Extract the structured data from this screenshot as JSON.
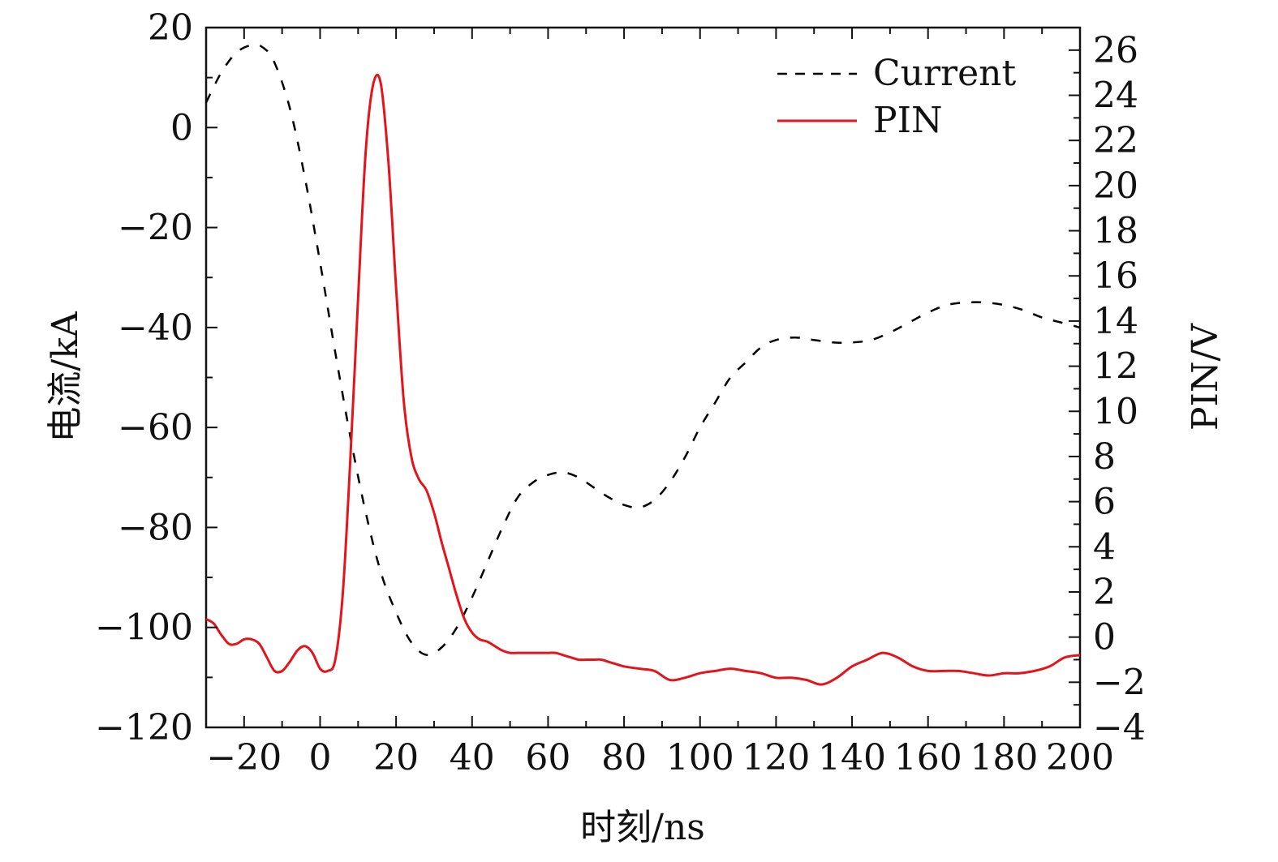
{
  "chart_data": {
    "type": "line",
    "xlabel": "时刻/ns",
    "ylabel_left": "电流/kA",
    "ylabel_right": "PIN/V",
    "xlim": [
      -30,
      200
    ],
    "ylim_left": [
      -120,
      20
    ],
    "ylim_right": [
      -4,
      27
    ],
    "x_ticks": [
      -20,
      0,
      20,
      40,
      60,
      80,
      100,
      120,
      140,
      160,
      180,
      200
    ],
    "x_tick_labels": [
      "−20",
      "0",
      "20",
      "40",
      "60",
      "80",
      "100",
      "120",
      "140",
      "160",
      "180",
      "200"
    ],
    "y_left_ticks": [
      20,
      0,
      -20,
      -40,
      -60,
      -80,
      -100,
      -120
    ],
    "y_left_tick_labels": [
      "20",
      "0",
      "−20",
      "−40",
      "−60",
      "−80",
      "−100",
      "−120"
    ],
    "y_right_ticks": [
      26,
      24,
      22,
      20,
      18,
      16,
      14,
      12,
      10,
      8,
      6,
      4,
      2,
      0,
      -2,
      -4
    ],
    "y_right_tick_labels": [
      "26",
      "24",
      "22",
      "20",
      "18",
      "16",
      "14",
      "12",
      "10",
      "8",
      "6",
      "4",
      "2",
      "0",
      "−2",
      "−4"
    ],
    "legend": {
      "position": "top-right",
      "entries": [
        "Current",
        "PIN"
      ]
    },
    "series": [
      {
        "name": "Current",
        "axis": "left",
        "color": "#000000",
        "style": "dashed",
        "x": [
          -30,
          -26,
          -22,
          -18,
          -15,
          -12,
          -8,
          -4,
          0,
          4,
          8,
          12,
          16,
          20,
          24,
          28,
          32,
          36,
          40,
          44,
          48,
          52,
          56,
          60,
          64,
          68,
          72,
          76,
          80,
          84,
          88,
          92,
          96,
          100,
          104,
          108,
          112,
          116,
          120,
          125,
          130,
          135,
          140,
          145,
          150,
          155,
          160,
          165,
          170,
          175,
          180,
          185,
          190,
          195,
          200
        ],
        "y": [
          5,
          11,
          15,
          16.5,
          16,
          13,
          4,
          -10,
          -27,
          -45,
          -62,
          -77,
          -89,
          -97,
          -103,
          -105.5,
          -104,
          -100,
          -94,
          -87,
          -80,
          -74,
          -71,
          -69.5,
          -69,
          -70,
          -72,
          -74,
          -75.5,
          -76,
          -74.5,
          -71,
          -66,
          -60,
          -55,
          -50,
          -47,
          -44,
          -42.5,
          -42,
          -42.5,
          -43,
          -43,
          -42.5,
          -41,
          -39,
          -37,
          -35.5,
          -35,
          -35,
          -35.5,
          -36.5,
          -38,
          -39,
          -40
        ]
      },
      {
        "name": "PIN",
        "axis": "right",
        "color": "#e4141b",
        "style": "solid",
        "x": [
          -30,
          -28,
          -26,
          -24,
          -22,
          -20,
          -18,
          -16,
          -14,
          -12,
          -10,
          -8,
          -6,
          -4,
          -2,
          0,
          2,
          4,
          6,
          8,
          10,
          12,
          14,
          16,
          18,
          20,
          22,
          24,
          26,
          28,
          30,
          32,
          34,
          36,
          38,
          40,
          42,
          44,
          46,
          48,
          50,
          52,
          54,
          56,
          58,
          60,
          62,
          64,
          66,
          68,
          70,
          72,
          74,
          76,
          78,
          80,
          84,
          88,
          92,
          96,
          100,
          104,
          108,
          112,
          116,
          120,
          124,
          128,
          132,
          136,
          140,
          144,
          148,
          152,
          156,
          160,
          164,
          168,
          172,
          176,
          180,
          184,
          188,
          192,
          196,
          200
        ],
        "y": [
          0.8,
          0.6,
          0.1,
          -0.3,
          -0.3,
          -0.1,
          -0.1,
          -0.3,
          -0.9,
          -1.5,
          -1.5,
          -1.1,
          -0.6,
          -0.4,
          -0.7,
          -1.4,
          -1.5,
          -1.0,
          2.0,
          8.0,
          15.0,
          21.5,
          24.5,
          24.5,
          21.0,
          15.5,
          10.5,
          8.0,
          7.0,
          6.5,
          5.5,
          4.2,
          3.0,
          1.8,
          0.8,
          0.2,
          -0.1,
          -0.2,
          -0.4,
          -0.6,
          -0.7,
          -0.7,
          -0.7,
          -0.7,
          -0.7,
          -0.7,
          -0.7,
          -0.8,
          -0.9,
          -1.0,
          -1.0,
          -1.0,
          -1.0,
          -1.1,
          -1.2,
          -1.3,
          -1.4,
          -1.5,
          -1.9,
          -1.8,
          -1.6,
          -1.5,
          -1.4,
          -1.5,
          -1.6,
          -1.8,
          -1.8,
          -1.9,
          -2.1,
          -1.8,
          -1.3,
          -1.0,
          -0.7,
          -0.9,
          -1.3,
          -1.5,
          -1.5,
          -1.5,
          -1.6,
          -1.7,
          -1.6,
          -1.6,
          -1.5,
          -1.3,
          -0.9,
          -0.8
        ]
      }
    ]
  }
}
